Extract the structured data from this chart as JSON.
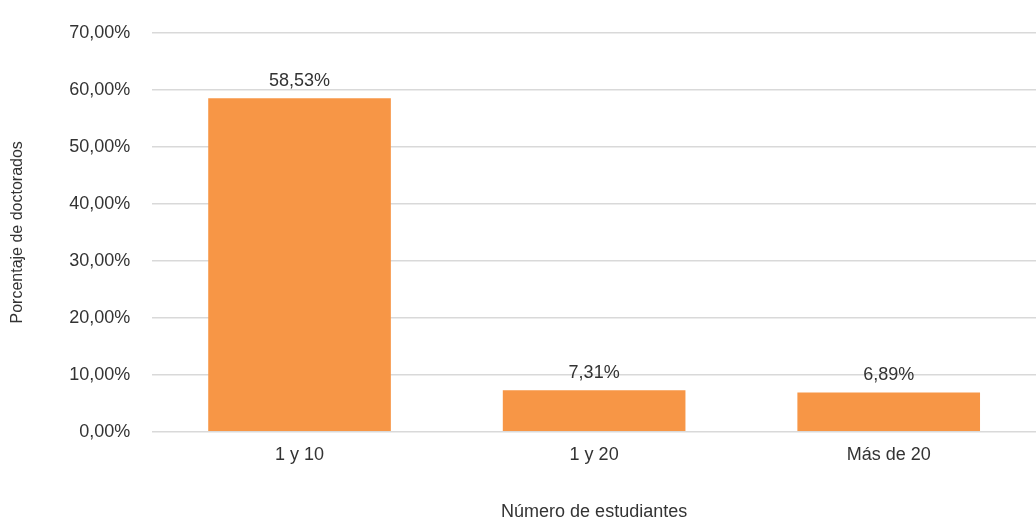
{
  "chart_data": {
    "type": "bar",
    "xlabel": "Número de estudiantes",
    "ylabel": "Porcentaje de doctorados",
    "categories": [
      "1 y 10",
      "1 y 20",
      "Más de 20"
    ],
    "values": [
      58.53,
      7.31,
      6.89
    ],
    "value_labels": [
      "58,53%",
      "7,31%",
      "6,89%"
    ],
    "color": "#f79646",
    "ylim": [
      0,
      70
    ],
    "yticks": [
      {
        "value": 0,
        "label": "0,00%"
      },
      {
        "value": 10,
        "label": "10,00%"
      },
      {
        "value": 20,
        "label": "20,00%"
      },
      {
        "value": 30,
        "label": "30,00%"
      },
      {
        "value": 40,
        "label": "40,00%"
      },
      {
        "value": 50,
        "label": "50,00%"
      },
      {
        "value": 60,
        "label": "60,00%"
      },
      {
        "value": 70,
        "label": "70,00%"
      }
    ],
    "grid": "y",
    "legend": false
  }
}
